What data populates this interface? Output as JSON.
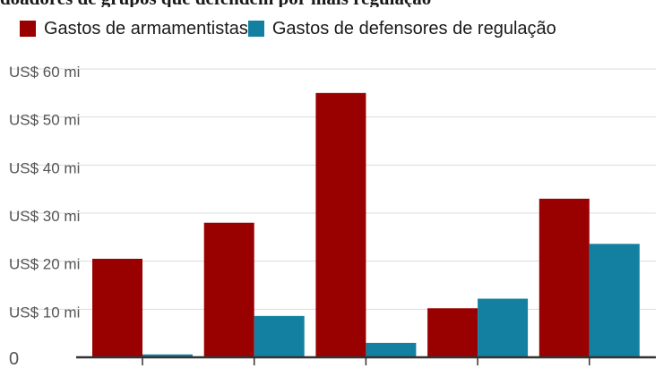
{
  "header": {
    "title_fragment": "doadores de grupos que defendem por mais regulação"
  },
  "chart_data": {
    "type": "bar",
    "categories": [
      "",
      "",
      "",
      "",
      ""
    ],
    "series": [
      {
        "name": "Gastos de armamentistas",
        "color": "#990000",
        "values": [
          20.5,
          28,
          55,
          10.2,
          33
        ]
      },
      {
        "name": "Gastos de defensores de regulação",
        "color": "#1380A1",
        "values": [
          0.6,
          8.6,
          3,
          12.2,
          23.6
        ]
      }
    ],
    "y_ticks": [
      {
        "value": 0,
        "label": "0"
      },
      {
        "value": 10,
        "label": "US$ 10 mi"
      },
      {
        "value": 20,
        "label": "US$ 20 mi"
      },
      {
        "value": 30,
        "label": "US$ 30 mi"
      },
      {
        "value": 40,
        "label": "US$ 40 mi"
      },
      {
        "value": 50,
        "label": "US$ 50 mi"
      },
      {
        "value": 60,
        "label": "US$ 60 mi"
      }
    ],
    "ylim": [
      0,
      60
    ],
    "grid": true,
    "legend_position": "top-left",
    "xlabel": "",
    "ylabel": ""
  }
}
